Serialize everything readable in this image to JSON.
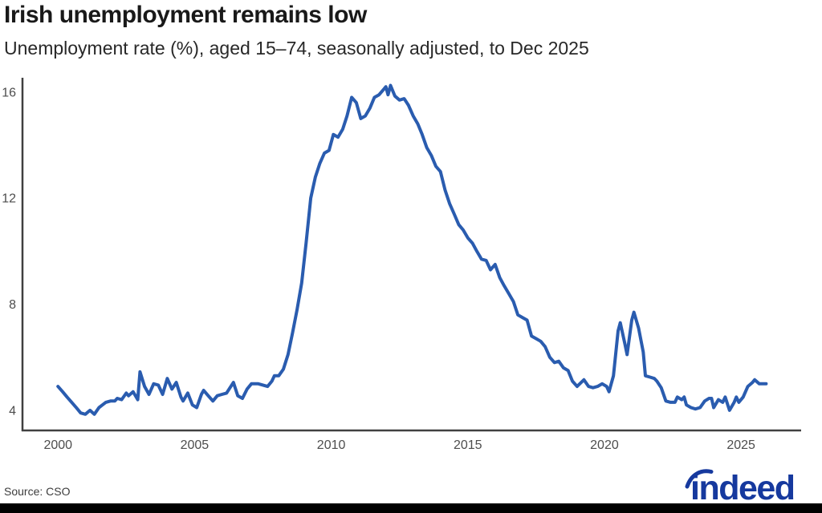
{
  "header": {
    "title": "Irish unemployment remains low",
    "subtitle": "Unemployment rate (%), aged 15–74, seasonally adjusted, to Dec 2025"
  },
  "footer": {
    "source": "Source: CSO",
    "logo_text": "indeed",
    "logo_color": "#16399e"
  },
  "chart_data": {
    "type": "line",
    "title": "Irish unemployment remains low",
    "subtitle": "Unemployment rate (%), aged 15–74, seasonally adjusted, to Dec 2025",
    "series_name": "Unemployment rate (%), aged 15-74, seasonally adjusted",
    "x_ticks": [
      2000,
      2005,
      2010,
      2015,
      2020,
      2025
    ],
    "y_ticks": [
      4,
      8,
      12,
      16
    ],
    "xlim": [
      1998.7,
      2027.2
    ],
    "ylim": [
      3.24,
      16.54
    ],
    "grid": false,
    "legend": "none",
    "line_color": "#2a5caf",
    "axis_color": "#404040",
    "x": [
      2000.0,
      2000.17,
      2000.33,
      2000.5,
      2000.67,
      2000.83,
      2001.0,
      2001.17,
      2001.33,
      2001.5,
      2001.75,
      2001.92,
      2002.08,
      2002.17,
      2002.33,
      2002.5,
      2002.58,
      2002.75,
      2002.92,
      2003.0,
      2003.17,
      2003.33,
      2003.5,
      2003.67,
      2003.83,
      2004.0,
      2004.17,
      2004.33,
      2004.5,
      2004.58,
      2004.75,
      2004.92,
      2005.08,
      2005.25,
      2005.33,
      2005.5,
      2005.67,
      2005.83,
      2006.0,
      2006.17,
      2006.42,
      2006.58,
      2006.75,
      2006.92,
      2007.08,
      2007.33,
      2007.5,
      2007.67,
      2007.83,
      2007.92,
      2008.08,
      2008.25,
      2008.42,
      2008.58,
      2008.75,
      2008.92,
      2009.08,
      2009.25,
      2009.42,
      2009.58,
      2009.75,
      2009.92,
      2010.08,
      2010.25,
      2010.42,
      2010.58,
      2010.75,
      2010.92,
      2011.08,
      2011.25,
      2011.42,
      2011.58,
      2011.75,
      2011.92,
      2012.0,
      2012.08,
      2012.17,
      2012.33,
      2012.5,
      2012.67,
      2012.83,
      2013.0,
      2013.17,
      2013.33,
      2013.5,
      2013.67,
      2013.83,
      2014.0,
      2014.17,
      2014.33,
      2014.5,
      2014.67,
      2014.83,
      2015.0,
      2015.17,
      2015.33,
      2015.5,
      2015.67,
      2015.83,
      2016.0,
      2016.17,
      2016.33,
      2016.5,
      2016.67,
      2016.83,
      2017.0,
      2017.17,
      2017.33,
      2017.5,
      2017.67,
      2017.83,
      2018.0,
      2018.17,
      2018.33,
      2018.5,
      2018.67,
      2018.83,
      2019.0,
      2019.25,
      2019.42,
      2019.58,
      2019.75,
      2019.92,
      2020.08,
      2020.17,
      2020.33,
      2020.5,
      2020.58,
      2020.75,
      2020.83,
      2021.0,
      2021.08,
      2021.25,
      2021.42,
      2021.5,
      2021.67,
      2021.83,
      2021.92,
      2022.08,
      2022.25,
      2022.42,
      2022.58,
      2022.67,
      2022.83,
      2022.92,
      2023.0,
      2023.17,
      2023.33,
      2023.5,
      2023.67,
      2023.83,
      2023.92,
      2024.0,
      2024.17,
      2024.33,
      2024.42,
      2024.58,
      2024.75,
      2024.83,
      2024.92,
      2025.08,
      2025.25,
      2025.42,
      2025.5,
      2025.67,
      2025.83,
      2025.92
    ],
    "values": [
      4.9,
      4.7,
      4.5,
      4.3,
      4.1,
      3.9,
      3.85,
      4.0,
      3.85,
      4.1,
      4.3,
      4.35,
      4.35,
      4.45,
      4.4,
      4.65,
      4.55,
      4.7,
      4.4,
      5.45,
      4.9,
      4.6,
      5.0,
      4.95,
      4.6,
      5.2,
      4.8,
      5.05,
      4.5,
      4.35,
      4.65,
      4.2,
      4.1,
      4.6,
      4.75,
      4.55,
      4.35,
      4.55,
      4.6,
      4.65,
      5.05,
      4.55,
      4.45,
      4.8,
      5.0,
      5.0,
      4.95,
      4.9,
      5.1,
      5.3,
      5.3,
      5.55,
      6.1,
      6.9,
      7.8,
      8.8,
      10.3,
      12.0,
      12.8,
      13.3,
      13.7,
      13.8,
      14.4,
      14.3,
      14.6,
      15.1,
      15.8,
      15.6,
      15.0,
      15.1,
      15.4,
      15.8,
      15.9,
      16.1,
      16.2,
      15.9,
      16.25,
      15.85,
      15.7,
      15.75,
      15.5,
      15.1,
      14.8,
      14.4,
      13.9,
      13.6,
      13.2,
      13.0,
      12.3,
      11.8,
      11.4,
      11.0,
      10.8,
      10.5,
      10.3,
      10.0,
      9.7,
      9.65,
      9.3,
      9.5,
      9.0,
      8.7,
      8.4,
      8.1,
      7.6,
      7.5,
      7.4,
      6.8,
      6.7,
      6.6,
      6.4,
      6.0,
      5.8,
      5.85,
      5.6,
      5.5,
      5.1,
      4.9,
      5.15,
      4.9,
      4.85,
      4.9,
      5.0,
      4.9,
      4.7,
      5.3,
      7.0,
      7.3,
      6.5,
      6.1,
      7.4,
      7.7,
      7.1,
      6.2,
      5.3,
      5.25,
      5.2,
      5.1,
      4.85,
      4.35,
      4.3,
      4.3,
      4.5,
      4.4,
      4.5,
      4.2,
      4.1,
      4.05,
      4.1,
      4.35,
      4.45,
      4.45,
      4.1,
      4.4,
      4.3,
      4.5,
      4.0,
      4.3,
      4.5,
      4.3,
      4.5,
      4.9,
      5.05,
      5.15,
      5.0,
      5.0,
      5.0
    ]
  }
}
